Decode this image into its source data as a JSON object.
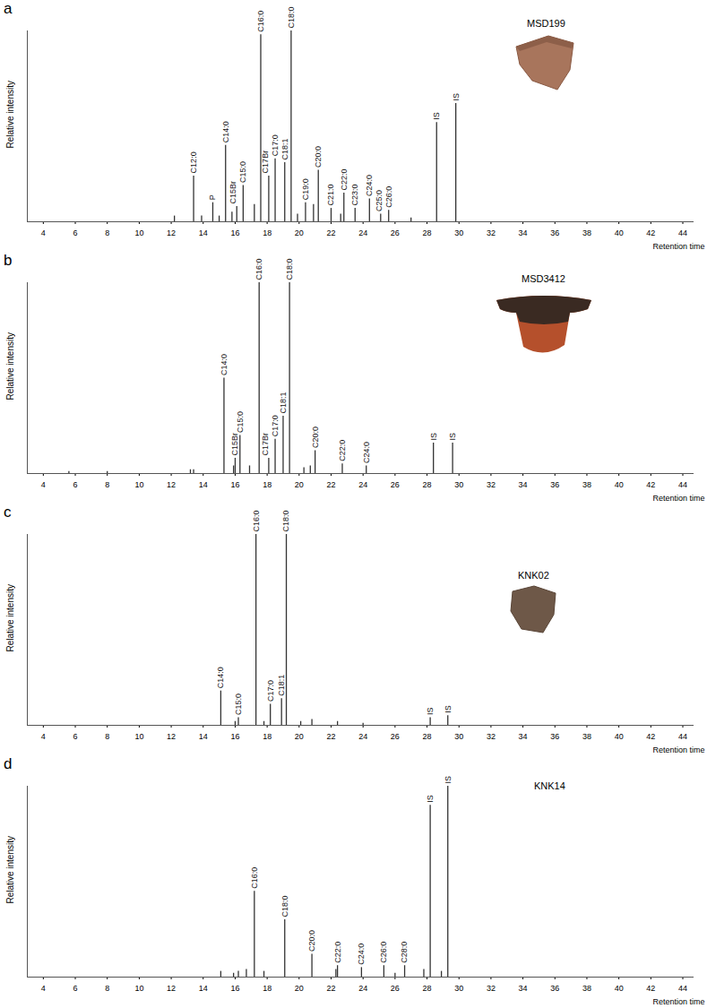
{
  "chart_data": [
    {
      "type": "chromatogram",
      "title": "a",
      "subtitle": "MSD199",
      "xlabel": "Retention time",
      "ylabel": "Relative intensity",
      "xlim": [
        3,
        44.7
      ],
      "xticks": [
        4,
        6,
        8,
        10,
        12,
        14,
        16,
        18,
        20,
        22,
        24,
        26,
        28,
        30,
        32,
        34,
        36,
        38,
        40,
        42,
        44
      ],
      "ylim": [
        0,
        100
      ],
      "tick_labels": "x",
      "color": "#333333",
      "x": [
        12.2,
        13.4,
        13.9,
        14.6,
        15.0,
        15.4,
        15.8,
        16.1,
        16.5,
        17.2,
        17.6,
        18.1,
        18.5,
        19.1,
        19.5,
        19.9,
        20.4,
        20.9,
        21.2,
        22.0,
        22.6,
        22.8,
        23.5,
        24.4,
        25.1,
        25.6,
        27.0,
        28.6,
        29.8
      ],
      "values": [
        3,
        24,
        3,
        10,
        3,
        40,
        5,
        8,
        19,
        9,
        98,
        24,
        33,
        31,
        100,
        4,
        10,
        9,
        27,
        7,
        4,
        15,
        7,
        12,
        4,
        6,
        2,
        52,
        62
      ],
      "labels": [
        null,
        "C12:0",
        null,
        "P",
        null,
        "C14:0",
        null,
        "C15Br",
        "C15:0",
        null,
        "C16:0",
        "C17Br",
        "C17:0",
        "C18:1",
        "C18:0",
        null,
        "C19:0",
        null,
        "C20:0",
        "C21:0",
        null,
        "C22:0",
        "C23:0",
        "C24:0",
        "C25:0",
        "C26:0",
        null,
        "IS",
        "IS"
      ]
    },
    {
      "type": "chromatogram",
      "title": "b",
      "subtitle": "MSD3412",
      "xlabel": "Retention time",
      "ylabel": "Relative intensity",
      "xlim": [
        3,
        44.7
      ],
      "xticks": [
        4,
        6,
        8,
        10,
        12,
        14,
        16,
        18,
        20,
        22,
        24,
        26,
        28,
        30,
        32,
        34,
        36,
        38,
        40,
        42,
        44
      ],
      "ylim": [
        0,
        100
      ],
      "tick_labels": "x",
      "color": "#333333",
      "x": [
        5.6,
        8.0,
        13.2,
        13.4,
        15.3,
        15.9,
        16.0,
        16.3,
        16.9,
        17.5,
        18.1,
        18.5,
        19.0,
        19.4,
        20.3,
        20.7,
        21.0,
        22.7,
        24.2,
        28.4,
        29.6
      ],
      "values": [
        1,
        1,
        2,
        2,
        50,
        4,
        8,
        20,
        4,
        100,
        8,
        18,
        30,
        100,
        3,
        4,
        12,
        5,
        4,
        16,
        16
      ],
      "labels": [
        null,
        null,
        null,
        null,
        "C14:0",
        null,
        "C15Br",
        "C15:0",
        null,
        "C16:0",
        "C17Br",
        "C17:0",
        "C18:1",
        "C18:0",
        null,
        null,
        "C20:0",
        "C22:0",
        "C24:0",
        "IS",
        "IS"
      ]
    },
    {
      "type": "chromatogram",
      "title": "c",
      "subtitle": "KNK02",
      "xlabel": "Retention time",
      "ylabel": "Relative intensity",
      "xlim": [
        3,
        44.7
      ],
      "xticks": [
        4,
        6,
        8,
        10,
        12,
        14,
        16,
        18,
        20,
        22,
        24,
        26,
        28,
        30,
        32,
        34,
        36,
        38,
        40,
        42,
        44
      ],
      "ylim": [
        0,
        100
      ],
      "tick_labels": "x",
      "color": "#333333",
      "x": [
        15.1,
        16.0,
        16.2,
        17.3,
        17.8,
        18.2,
        18.9,
        19.2,
        20.1,
        20.8,
        22.4,
        24.0,
        28.2,
        29.3
      ],
      "values": [
        18,
        2,
        4,
        100,
        2,
        11,
        14,
        100,
        2,
        3,
        2,
        1,
        4,
        5
      ],
      "labels": [
        "C14:0",
        null,
        "C15:0",
        "C16:0",
        null,
        "C17:0",
        "C18:1",
        "C18:0",
        null,
        null,
        null,
        null,
        "IS",
        "IS"
      ]
    },
    {
      "type": "chromatogram",
      "title": "d",
      "subtitle": "KNK14",
      "xlabel": "Retention time",
      "ylabel": "Relative intensity",
      "xlim": [
        3,
        44.7
      ],
      "xticks": [
        4,
        6,
        8,
        10,
        12,
        14,
        16,
        18,
        20,
        22,
        24,
        26,
        28,
        30,
        32,
        34,
        36,
        38,
        40,
        42,
        44
      ],
      "ylim": [
        0,
        100
      ],
      "tick_labels": "x",
      "color": "#333333",
      "x": [
        15.1,
        15.9,
        16.2,
        16.7,
        17.2,
        17.8,
        19.1,
        20.8,
        22.3,
        22.4,
        23.9,
        25.3,
        26.0,
        26.6,
        27.8,
        28.2,
        28.9,
        29.3
      ],
      "values": [
        3,
        2,
        3,
        4,
        45,
        3,
        30,
        12,
        4,
        6,
        5,
        6,
        2,
        6,
        4,
        90,
        3,
        100
      ],
      "labels": [
        null,
        null,
        null,
        null,
        "C16:0",
        null,
        "C18:0",
        "C20:0",
        null,
        "C22:0",
        "C24:0",
        "C26:0",
        null,
        "C28:0",
        null,
        "IS",
        null,
        "IS"
      ]
    }
  ]
}
